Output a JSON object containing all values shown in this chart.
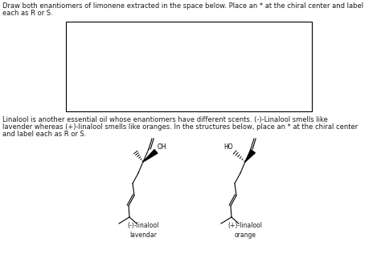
{
  "title_line1": "Draw both enantiomers of limonene extracted in the space below. Place an * at the chiral center and label",
  "title_line2": "each as R or S.",
  "para_line1": "Linalool is another essential oil whose enantiomers have different scents. (-)-Linalool smells like",
  "para_line2": "lavender whereas (+)-linalool smells like oranges. In the structures below, place an * at the chiral center",
  "para_line3": "and label each as R or S.",
  "label_left": "(-)-linalool\nlavendar",
  "label_right": "(+)-linalool\norange",
  "background": "#ffffff",
  "line_color": "#000000",
  "text_color": "#1a1a1a",
  "font_size_body": 6.0,
  "font_size_label": 5.5,
  "font_size_chem": 5.5
}
